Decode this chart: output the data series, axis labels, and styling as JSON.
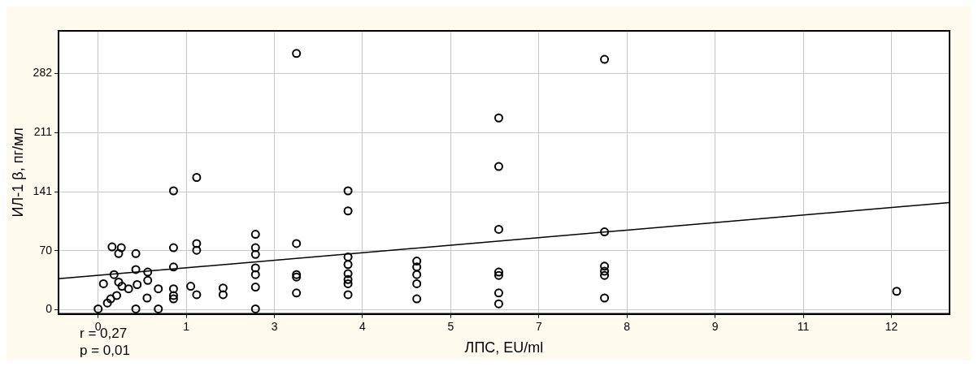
{
  "chart_data": {
    "type": "scatter",
    "xlabel": "ЛПС, EU/ml",
    "ylabel": "ИЛ-1 β, пг/мл",
    "annotations": [
      "r = 0,27",
      "p = 0,01"
    ],
    "xlim": [
      -0.6,
      12.88
    ],
    "ylim": [
      -5,
      333
    ],
    "xticks": [
      0,
      {
        "value": 1.333,
        "label": "1"
      },
      {
        "value": 2.667,
        "label": "3"
      },
      4,
      {
        "value": 5.333,
        "label": "5"
      },
      {
        "value": 6.667,
        "label": "7"
      },
      8,
      {
        "value": 9.333,
        "label": "9"
      },
      {
        "value": 10.667,
        "label": "11"
      },
      12
    ],
    "yticks": [
      0,
      {
        "value": 70.5,
        "label": "70"
      },
      141,
      {
        "value": 211.5,
        "label": "211"
      },
      282
    ],
    "grid": true,
    "marker": "circle",
    "series": [
      {
        "color": "#000000",
        "x": [
          3.0,
          1.49,
          1.14,
          3.78,
          3.78,
          2.38,
          3.0,
          0.21,
          0.35,
          1.14,
          1.49,
          1.49,
          2.38,
          2.38,
          0.31,
          0.57,
          3.78,
          3.78,
          0.57,
          0.75,
          0.24,
          1.14,
          2.38,
          2.38,
          3.0,
          3.0,
          3.78,
          3.78,
          3.78,
          0.75,
          0.08,
          0.31,
          0.36,
          0.46,
          0.59,
          0.91,
          1.14,
          1.4,
          1.49,
          1.89,
          1.89,
          2.38,
          3.0,
          3.78,
          0.28,
          0.19,
          0.14,
          0.0,
          0.57,
          0.91,
          2.38,
          0.74,
          1.14,
          1.14,
          7.66,
          6.06,
          6.06,
          6.06,
          7.66,
          4.82,
          4.82,
          4.82,
          4.82,
          4.82,
          6.06,
          6.06,
          6.06,
          6.06,
          7.66,
          7.66,
          7.66,
          7.66,
          12.08
        ],
        "values": [
          306,
          158,
          142,
          142,
          118,
          90,
          79,
          75,
          74,
          74,
          79,
          71,
          74,
          66,
          67,
          67,
          63,
          54,
          48,
          45,
          42,
          51,
          50,
          42,
          42,
          39,
          43,
          36,
          31,
          35,
          31,
          33,
          28,
          25,
          30,
          25,
          25,
          28,
          18,
          26,
          18,
          27,
          20,
          18,
          17,
          13,
          8,
          1,
          1,
          1,
          1,
          14,
          17,
          13,
          299,
          229,
          171,
          96,
          93,
          58,
          51,
          42,
          31,
          13,
          45,
          41,
          20,
          7,
          52,
          46,
          41,
          14,
          22
        ]
      },
      {
        "type": "line",
        "color": "#000000",
        "marker": "none",
        "line_style": "solid",
        "x": [
          -0.6,
          12.88
        ],
        "values": [
          37,
          128
        ]
      }
    ]
  }
}
